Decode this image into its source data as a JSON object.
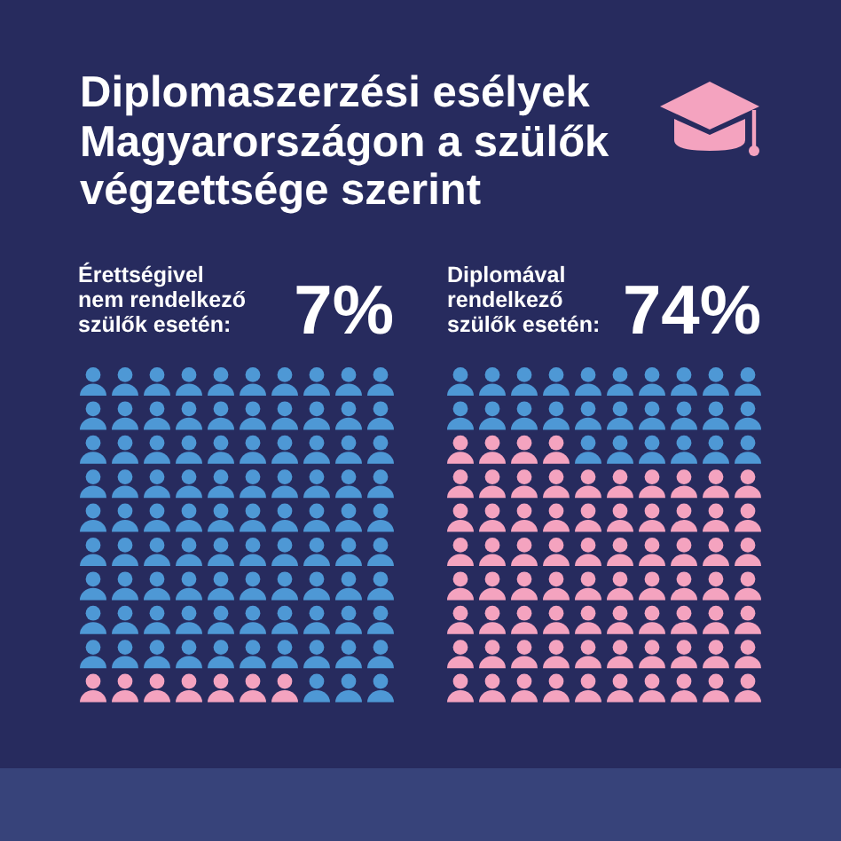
{
  "chart_data": [
    {
      "type": "other",
      "title": "Diplomaszerzési esélyek Magyarországon a szülők végzettsége szerint"
    },
    {
      "type": "other",
      "subtitle": "Érettségivel nem rendelkező szülők esetén:",
      "values": [
        7
      ],
      "value_labels": [
        "7%"
      ],
      "color": "#f4a3bf"
    },
    {
      "type": "other",
      "subtitle": "Diplomával rendelkező szülők esetén:",
      "values": [
        74
      ],
      "value_labels": [
        "74%"
      ],
      "color": "#f4a3bf"
    }
  ]
}
